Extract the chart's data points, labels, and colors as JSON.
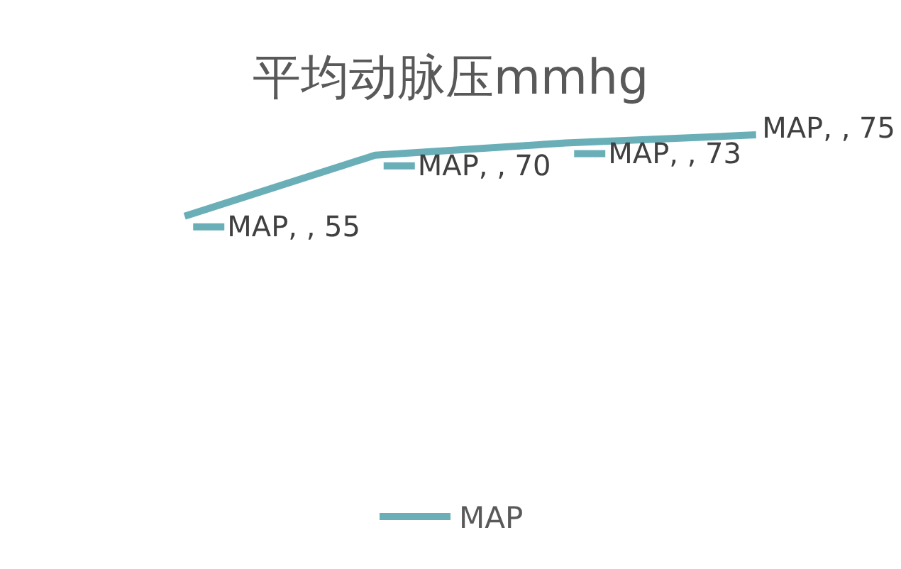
{
  "chart_data": {
    "type": "line",
    "title": "平均动脉压mmhg",
    "categories": [
      null,
      null,
      null,
      null
    ],
    "series": [
      {
        "name": "MAP",
        "color": "#6aafb8",
        "values": [
          55,
          70,
          73,
          75
        ],
        "value_labels": [
          "MAP, , 55",
          "MAP, , 70",
          "MAP, , 73",
          "MAP, , 75"
        ]
      }
    ],
    "legend": "bottom",
    "grid": false
  }
}
